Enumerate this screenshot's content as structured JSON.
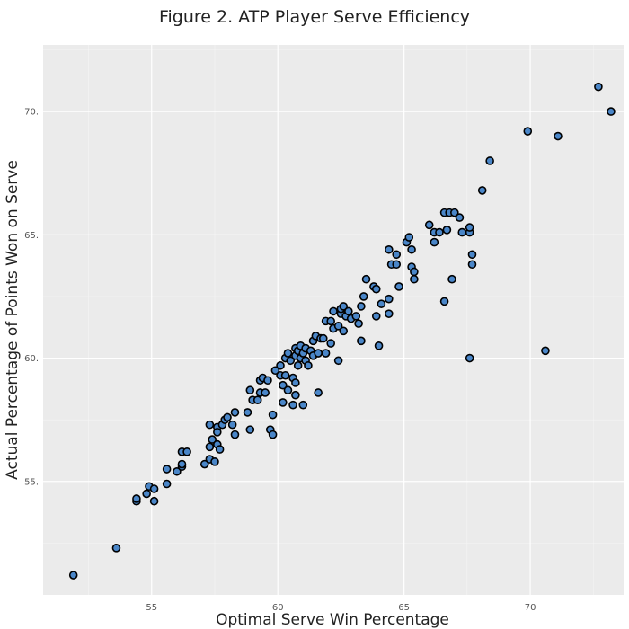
{
  "chart_data": {
    "type": "scatter",
    "title": "Figure 2. ATP Player Serve Efficiency",
    "xlabel": "Optimal Serve Win Percentage",
    "ylabel": "Actual Percentage of Points Won on Serve",
    "xlim": [
      50.7,
      73.7
    ],
    "ylim": [
      50.4,
      72.7
    ],
    "xticks": [
      55,
      60,
      65,
      70
    ],
    "yticks": [
      55,
      60,
      65,
      70
    ],
    "x_tick_labels": [
      "55",
      "60",
      "65",
      "70"
    ],
    "y_tick_labels": [
      "55.",
      "60.",
      "65.",
      "70."
    ],
    "grid": true,
    "background": "#ebebeb",
    "point_color": "#4a86c8",
    "series": [
      {
        "points": [
          [
            51.9,
            51.2
          ],
          [
            53.6,
            52.3
          ],
          [
            54.4,
            54.2
          ],
          [
            54.4,
            54.3
          ],
          [
            54.8,
            54.5
          ],
          [
            54.9,
            54.8
          ],
          [
            55.1,
            54.2
          ],
          [
            55.1,
            54.7
          ],
          [
            55.6,
            54.9
          ],
          [
            55.6,
            55.5
          ],
          [
            56.0,
            55.4
          ],
          [
            56.2,
            55.6
          ],
          [
            56.2,
            55.7
          ],
          [
            56.2,
            56.2
          ],
          [
            56.4,
            56.2
          ],
          [
            57.1,
            55.7
          ],
          [
            57.3,
            55.9
          ],
          [
            57.3,
            56.4
          ],
          [
            57.5,
            55.8
          ],
          [
            57.4,
            56.7
          ],
          [
            57.6,
            56.5
          ],
          [
            57.7,
            56.3
          ],
          [
            57.3,
            57.3
          ],
          [
            57.6,
            57.2
          ],
          [
            57.6,
            57.0
          ],
          [
            57.8,
            57.3
          ],
          [
            57.9,
            57.5
          ],
          [
            58.0,
            57.6
          ],
          [
            58.2,
            57.3
          ],
          [
            58.3,
            57.8
          ],
          [
            58.3,
            56.9
          ],
          [
            58.8,
            57.8
          ],
          [
            58.9,
            57.1
          ],
          [
            58.9,
            58.7
          ],
          [
            59.0,
            58.3
          ],
          [
            59.2,
            58.3
          ],
          [
            59.3,
            58.6
          ],
          [
            59.3,
            59.1
          ],
          [
            59.4,
            59.2
          ],
          [
            59.5,
            58.6
          ],
          [
            59.6,
            59.1
          ],
          [
            59.7,
            57.1
          ],
          [
            59.8,
            56.9
          ],
          [
            59.8,
            57.7
          ],
          [
            59.9,
            59.5
          ],
          [
            60.1,
            59.7
          ],
          [
            60.1,
            59.3
          ],
          [
            60.2,
            58.9
          ],
          [
            60.2,
            58.2
          ],
          [
            60.3,
            59.3
          ],
          [
            60.3,
            60.0
          ],
          [
            60.4,
            60.2
          ],
          [
            60.4,
            58.7
          ],
          [
            60.6,
            58.1
          ],
          [
            60.6,
            59.2
          ],
          [
            60.7,
            59.0
          ],
          [
            60.7,
            58.5
          ],
          [
            60.5,
            59.9
          ],
          [
            60.7,
            60.1
          ],
          [
            60.7,
            60.4
          ],
          [
            60.8,
            60.3
          ],
          [
            60.8,
            59.7
          ],
          [
            60.9,
            60.5
          ],
          [
            60.9,
            60.0
          ],
          [
            61.0,
            58.1
          ],
          [
            61.0,
            60.2
          ],
          [
            61.1,
            60.4
          ],
          [
            61.1,
            59.9
          ],
          [
            61.2,
            59.7
          ],
          [
            61.3,
            60.3
          ],
          [
            61.4,
            60.1
          ],
          [
            61.4,
            60.7
          ],
          [
            61.5,
            60.9
          ],
          [
            61.6,
            58.6
          ],
          [
            61.6,
            60.2
          ],
          [
            61.7,
            60.8
          ],
          [
            61.8,
            60.8
          ],
          [
            61.9,
            60.2
          ],
          [
            61.9,
            61.5
          ],
          [
            62.1,
            60.6
          ],
          [
            62.1,
            61.5
          ],
          [
            62.2,
            61.9
          ],
          [
            62.2,
            61.2
          ],
          [
            62.4,
            61.3
          ],
          [
            62.4,
            59.9
          ],
          [
            62.5,
            61.8
          ],
          [
            62.5,
            62.0
          ],
          [
            62.6,
            62.1
          ],
          [
            62.6,
            61.1
          ],
          [
            62.7,
            61.7
          ],
          [
            62.8,
            61.9
          ],
          [
            62.9,
            61.6
          ],
          [
            63.1,
            61.7
          ],
          [
            63.2,
            61.4
          ],
          [
            63.3,
            60.7
          ],
          [
            63.3,
            62.1
          ],
          [
            63.4,
            62.5
          ],
          [
            63.5,
            63.2
          ],
          [
            63.8,
            62.9
          ],
          [
            63.9,
            62.8
          ],
          [
            63.9,
            61.7
          ],
          [
            64.0,
            60.5
          ],
          [
            64.1,
            62.2
          ],
          [
            64.4,
            61.8
          ],
          [
            64.4,
            62.4
          ],
          [
            64.4,
            64.4
          ],
          [
            64.5,
            63.8
          ],
          [
            64.7,
            64.2
          ],
          [
            64.7,
            63.8
          ],
          [
            64.8,
            62.9
          ],
          [
            65.1,
            64.7
          ],
          [
            65.2,
            64.9
          ],
          [
            65.3,
            64.4
          ],
          [
            65.3,
            63.7
          ],
          [
            65.4,
            63.5
          ],
          [
            65.4,
            63.2
          ],
          [
            66.0,
            65.4
          ],
          [
            66.2,
            65.1
          ],
          [
            66.2,
            64.7
          ],
          [
            66.4,
            65.1
          ],
          [
            66.6,
            65.9
          ],
          [
            66.7,
            65.2
          ],
          [
            66.6,
            62.3
          ],
          [
            66.8,
            65.9
          ],
          [
            66.9,
            63.2
          ],
          [
            67.0,
            65.9
          ],
          [
            67.2,
            65.7
          ],
          [
            67.3,
            65.1
          ],
          [
            67.6,
            65.1
          ],
          [
            67.6,
            65.3
          ],
          [
            67.6,
            60.0
          ],
          [
            67.7,
            64.2
          ],
          [
            67.7,
            63.8
          ],
          [
            68.1,
            66.8
          ],
          [
            68.4,
            68.0
          ],
          [
            69.9,
            69.2
          ],
          [
            70.6,
            60.3
          ],
          [
            71.1,
            69.0
          ],
          [
            72.7,
            71.0
          ],
          [
            73.2,
            70.0
          ]
        ]
      }
    ]
  }
}
